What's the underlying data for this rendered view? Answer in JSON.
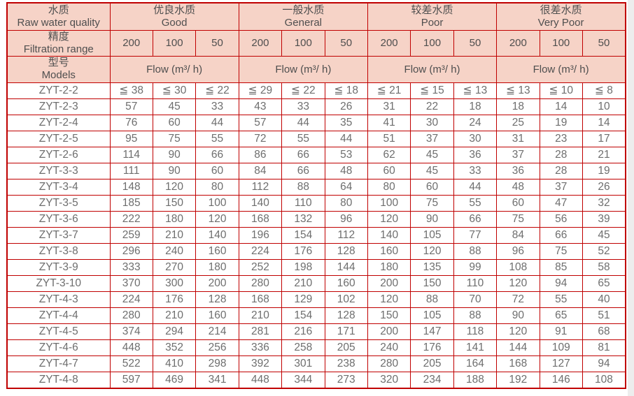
{
  "colors": {
    "table_border": "#c00000",
    "header_bg": "#f6d3c7",
    "header_text": "#4f4f4f",
    "data_text": "#6e6e6e",
    "page_bg": "#ffffff",
    "gutter": "#ededed"
  },
  "chart_data": {
    "type": "table",
    "header": {
      "row_headers": [
        {
          "cn": "水质",
          "en": "Raw water quality"
        },
        {
          "cn": "精度",
          "en": "Filtration range"
        },
        {
          "cn": "型号",
          "en": "Models"
        }
      ],
      "groups": [
        {
          "cn": "优良水质",
          "en": "Good"
        },
        {
          "cn": "一般水质",
          "en": "General"
        },
        {
          "cn": "较差水质",
          "en": "Poor"
        },
        {
          "cn": "很差水质",
          "en": "Very Poor"
        }
      ],
      "precision": [
        "200",
        "100",
        "50"
      ],
      "flow_label": "Flow (m³/ h)"
    },
    "rows": [
      {
        "model": "ZYT-2-2",
        "flows": [
          "≦ 38",
          "≦ 30",
          "≦ 22",
          "≦ 29",
          "≦ 22",
          "≦ 18",
          "≦ 21",
          "≦ 15",
          "≦ 13",
          "≦ 13",
          "≦ 10",
          "≦ 8"
        ]
      },
      {
        "model": "ZYT-2-3",
        "flows": [
          "57",
          "45",
          "33",
          "43",
          "33",
          "26",
          "31",
          "22",
          "18",
          "18",
          "14",
          "10"
        ]
      },
      {
        "model": "ZYT-2-4",
        "flows": [
          "76",
          "60",
          "44",
          "57",
          "44",
          "35",
          "41",
          "30",
          "24",
          "25",
          "19",
          "14"
        ]
      },
      {
        "model": "ZYT-2-5",
        "flows": [
          "95",
          "75",
          "55",
          "72",
          "55",
          "44",
          "51",
          "37",
          "30",
          "31",
          "23",
          "17"
        ]
      },
      {
        "model": "ZYT-2-6",
        "flows": [
          "114",
          "90",
          "66",
          "86",
          "66",
          "53",
          "62",
          "45",
          "36",
          "37",
          "28",
          "21"
        ]
      },
      {
        "model": "ZYT-3-3",
        "flows": [
          "111",
          "90",
          "60",
          "84",
          "66",
          "48",
          "60",
          "45",
          "33",
          "36",
          "28",
          "19"
        ]
      },
      {
        "model": "ZYT-3-4",
        "flows": [
          "148",
          "120",
          "80",
          "112",
          "88",
          "64",
          "80",
          "60",
          "44",
          "48",
          "37",
          "26"
        ]
      },
      {
        "model": "ZYT-3-5",
        "flows": [
          "185",
          "150",
          "100",
          "140",
          "110",
          "80",
          "100",
          "75",
          "55",
          "60",
          "47",
          "32"
        ]
      },
      {
        "model": "ZYT-3-6",
        "flows": [
          "222",
          "180",
          "120",
          "168",
          "132",
          "96",
          "120",
          "90",
          "66",
          "75",
          "56",
          "39"
        ]
      },
      {
        "model": "ZYT-3-7",
        "flows": [
          "259",
          "210",
          "140",
          "196",
          "154",
          "112",
          "140",
          "105",
          "77",
          "84",
          "66",
          "45"
        ]
      },
      {
        "model": "ZYT-3-8",
        "flows": [
          "296",
          "240",
          "160",
          "224",
          "176",
          "128",
          "160",
          "120",
          "88",
          "96",
          "75",
          "52"
        ]
      },
      {
        "model": "ZYT-3-9",
        "flows": [
          "333",
          "270",
          "180",
          "252",
          "198",
          "144",
          "180",
          "135",
          "99",
          "108",
          "85",
          "58"
        ]
      },
      {
        "model": "ZYT-3-10",
        "flows": [
          "370",
          "300",
          "200",
          "280",
          "210",
          "160",
          "200",
          "150",
          "110",
          "120",
          "94",
          "65"
        ]
      },
      {
        "model": "ZYT-4-3",
        "flows": [
          "224",
          "176",
          "128",
          "168",
          "129",
          "102",
          "120",
          "88",
          "70",
          "72",
          "55",
          "40"
        ]
      },
      {
        "model": "ZYT-4-4",
        "flows": [
          "280",
          "210",
          "160",
          "210",
          "154",
          "128",
          "150",
          "105",
          "88",
          "90",
          "65",
          "51"
        ]
      },
      {
        "model": "ZYT-4-5",
        "flows": [
          "374",
          "294",
          "214",
          "281",
          "216",
          "171",
          "200",
          "147",
          "118",
          "120",
          "91",
          "68"
        ]
      },
      {
        "model": "ZYT-4-6",
        "flows": [
          "448",
          "352",
          "256",
          "336",
          "258",
          "205",
          "240",
          "176",
          "141",
          "144",
          "109",
          "81"
        ]
      },
      {
        "model": "ZYT-4-7",
        "flows": [
          "522",
          "410",
          "298",
          "392",
          "301",
          "238",
          "280",
          "205",
          "164",
          "168",
          "127",
          "94"
        ]
      },
      {
        "model": "ZYT-4-8",
        "flows": [
          "597",
          "469",
          "341",
          "448",
          "344",
          "273",
          "320",
          "234",
          "188",
          "192",
          "146",
          "108"
        ]
      }
    ]
  }
}
